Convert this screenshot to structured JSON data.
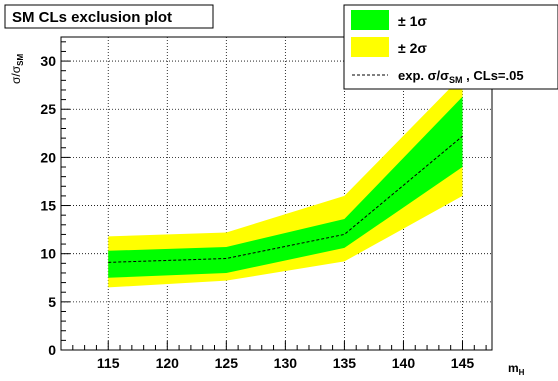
{
  "chart_data": {
    "type": "area",
    "title": "SM CLs exclusion plot",
    "ylabel": "σ/σSM",
    "ylabel_parts": {
      "main": "σ/σ",
      "sub": "SM"
    },
    "xlabel": "mH",
    "xlabel_parts": {
      "main": "m",
      "sub": "H"
    },
    "xlim": [
      111,
      147.5
    ],
    "ylim": [
      0,
      32.5
    ],
    "x_ticks": [
      115,
      120,
      125,
      130,
      135,
      140,
      145
    ],
    "y_ticks": [
      0,
      5,
      10,
      15,
      20,
      25,
      30
    ],
    "grid": true,
    "legend_position": "top-right",
    "x": [
      115,
      125,
      135,
      145
    ],
    "series": [
      {
        "name": "± 2σ",
        "color": "#ffff00",
        "lower": [
          6.5,
          7.2,
          9.2,
          16.0
        ],
        "upper": [
          11.8,
          12.2,
          16.0,
          28.5
        ]
      },
      {
        "name": "± 1σ",
        "color": "#00ff00",
        "lower": [
          7.5,
          8.0,
          10.6,
          19.0
        ],
        "upper": [
          10.3,
          10.7,
          13.6,
          26.3
        ]
      },
      {
        "name": "exp. σ/σSM , CLs=.05",
        "color": "#000000",
        "style": "dashed",
        "values": [
          9.1,
          9.5,
          12.0,
          22.2
        ]
      }
    ],
    "legend": {
      "one_sigma": "± 1σ",
      "two_sigma": "± 2σ",
      "expected_main": "exp. σ/σ",
      "expected_sub": "SM",
      "expected_tail": " , CLs=.05"
    }
  }
}
